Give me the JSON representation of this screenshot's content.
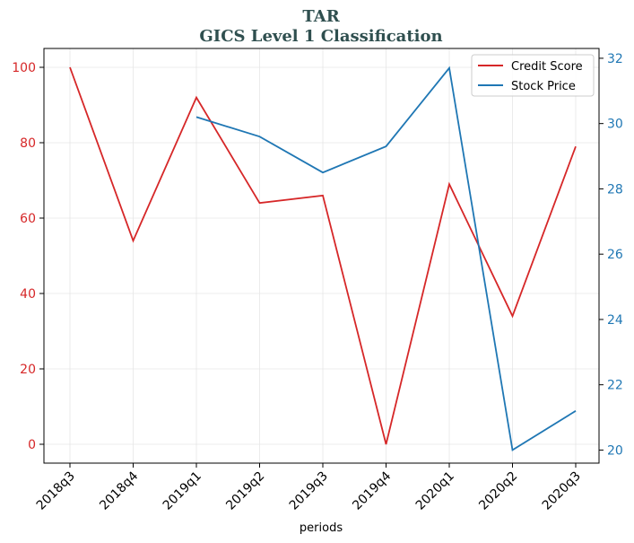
{
  "chart_data": {
    "type": "line",
    "title": "TAR",
    "subtitle": "GICS Level 1 Classification",
    "xlabel": "periods",
    "categories": [
      "2018q3",
      "2018q4",
      "2019q1",
      "2019q2",
      "2019q3",
      "2019q4",
      "2020q1",
      "2020q2",
      "2020q3"
    ],
    "series": [
      {
        "name": "Credit Score",
        "axis": "left",
        "color": "#d62728",
        "values": [
          100,
          54,
          92,
          64,
          66,
          0,
          69,
          34,
          79
        ]
      },
      {
        "name": "Stock Price",
        "axis": "right",
        "color": "#1f77b4",
        "values": [
          null,
          null,
          30.2,
          29.6,
          28.5,
          29.3,
          31.7,
          20.0,
          21.2
        ]
      }
    ],
    "y_left": {
      "ylim": [
        -5,
        105
      ],
      "ticks": [
        "0",
        "20",
        "40",
        "60",
        "80",
        "100"
      ],
      "tick_values": [
        0,
        20,
        40,
        60,
        80,
        100
      ]
    },
    "y_right": {
      "ylim": [
        19.6,
        32.3
      ],
      "ticks": [
        "20",
        "22",
        "24",
        "26",
        "28",
        "30",
        "32"
      ],
      "tick_values": [
        20,
        22,
        24,
        26,
        28,
        30,
        32
      ]
    },
    "grid": true,
    "legend_position": "top-right"
  }
}
